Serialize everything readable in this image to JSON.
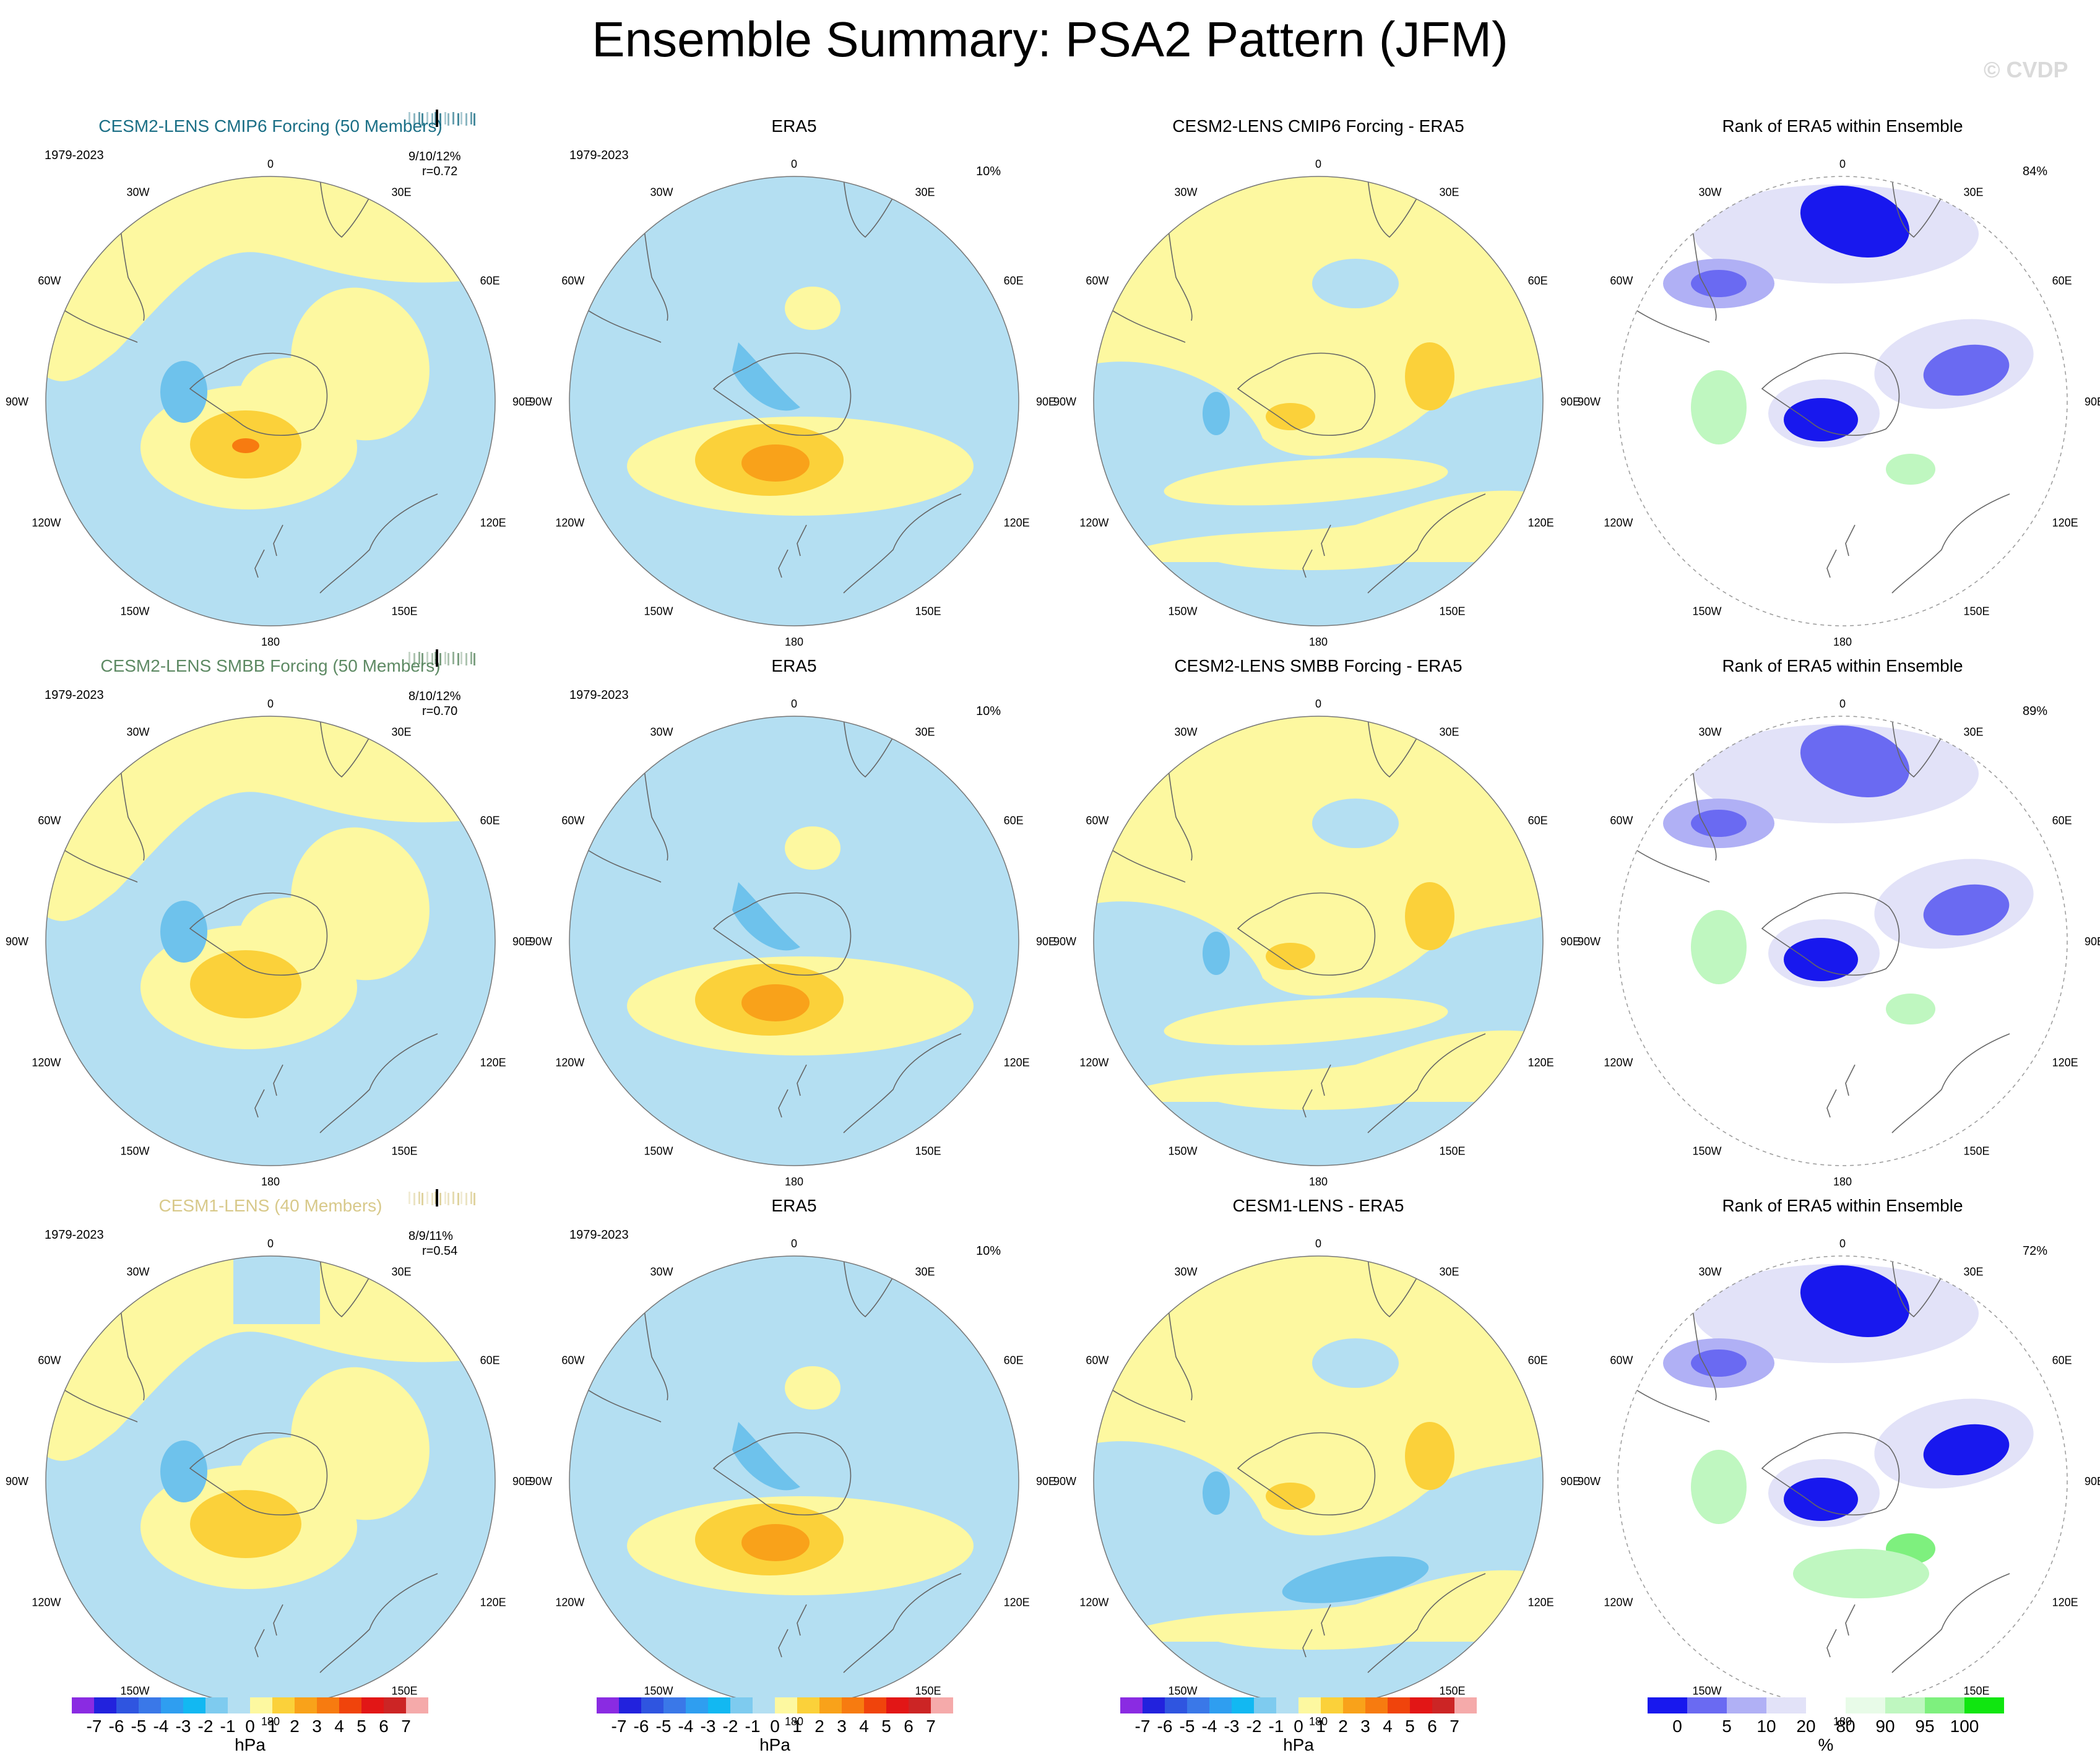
{
  "title": "Ensemble Summary: PSA2 Pattern (JFM)",
  "watermark": "© CVDP",
  "longitudes": [
    "0",
    "30E",
    "60E",
    "90E",
    "120E",
    "150E",
    "180",
    "150W",
    "120W",
    "90W",
    "60W",
    "30W"
  ],
  "rows": [
    {
      "model": {
        "title": "CESM2-LENS CMIP6 Forcing (50 Members)",
        "color": "#1b6f86",
        "years": "1979-2023",
        "stats": "9/10/12%",
        "corr": "r=0.72"
      },
      "obs": {
        "title": "ERA5",
        "years": "1979-2023",
        "pct": "10%"
      },
      "diff": {
        "title": "CESM2-LENS CMIP6 Forcing - ERA5"
      },
      "rank": {
        "title": "Rank of ERA5 within Ensemble",
        "pct": "84%"
      }
    },
    {
      "model": {
        "title": "CESM2-LENS SMBB Forcing (50 Members)",
        "color": "#5e8a64",
        "years": "1979-2023",
        "stats": "8/10/12%",
        "corr": "r=0.70"
      },
      "obs": {
        "title": "ERA5",
        "years": "1979-2023",
        "pct": "10%"
      },
      "diff": {
        "title": "CESM2-LENS SMBB Forcing - ERA5"
      },
      "rank": {
        "title": "Rank of ERA5 within Ensemble",
        "pct": "89%"
      }
    },
    {
      "model": {
        "title": "CESM1-LENS (40 Members)",
        "color": "#d8c98a",
        "years": "1979-2023",
        "stats": "8/9/11%",
        "corr": "r=0.54"
      },
      "obs": {
        "title": "ERA5",
        "years": "1979-2023",
        "pct": "10%"
      },
      "diff": {
        "title": "CESM1-LENS - ERA5"
      },
      "rank": {
        "title": "Rank of ERA5 within Ensemble",
        "pct": "72%"
      }
    }
  ],
  "colorbar_hpa": {
    "unit": "hPa",
    "labels": [
      "-7",
      "-6",
      "-5",
      "-4",
      "-3",
      "-2",
      "-1",
      "0",
      "1",
      "2",
      "3",
      "4",
      "5",
      "6",
      "7"
    ],
    "colors": [
      "#8a2be2",
      "#2222dd",
      "#2f55e0",
      "#3a78e8",
      "#2f9ef0",
      "#12b8f2",
      "#7ecbef",
      "#b4dff2",
      "#fdf8a0",
      "#fbd13a",
      "#f9a21a",
      "#f77b10",
      "#f0440c",
      "#e21616",
      "#cc2525",
      "#f5aaaa"
    ]
  },
  "colorbar_rank": {
    "unit": "%",
    "labels": [
      "0",
      "5",
      "10",
      "20",
      "80",
      "90",
      "95",
      "100"
    ],
    "colors": [
      "#1818ee",
      "#6a6af2",
      "#b0b0f5",
      "#e2e2f8",
      "#ffffff",
      "#e8fbe8",
      "#bff7c0",
      "#7ef07e",
      "#10e610"
    ]
  }
}
